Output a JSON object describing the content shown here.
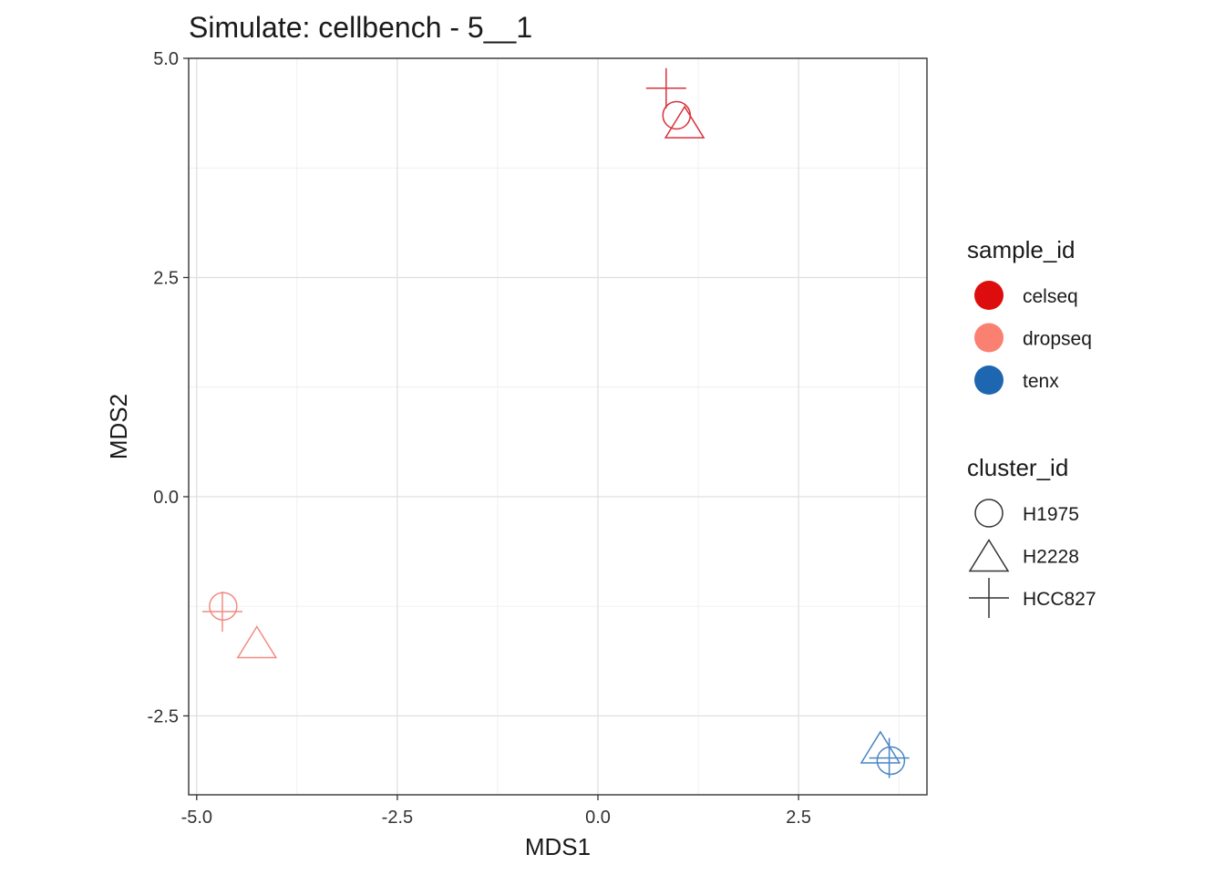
{
  "chart_data": {
    "type": "scatter",
    "title": "Simulate: cellbench - 5__1",
    "xlabel": "MDS1",
    "ylabel": "MDS2",
    "xlim": [
      -5.1,
      4.1
    ],
    "ylim": [
      -3.4,
      5.0
    ],
    "x_ticks": [
      -5.0,
      -2.5,
      0.0,
      2.5
    ],
    "x_tick_labels": [
      "-5.0",
      "-2.5",
      "0.0",
      "2.5"
    ],
    "y_ticks": [
      -2.5,
      0.0,
      2.5,
      5.0
    ],
    "y_tick_labels": [
      "-2.5",
      "0.0",
      "2.5",
      "5.0"
    ],
    "grid": true,
    "legend_position": "right",
    "color_legend": {
      "title": "sample_id",
      "entries": [
        {
          "label": "celseq",
          "color": "#de0d0d"
        },
        {
          "label": "dropseq",
          "color": "#fa8072"
        },
        {
          "label": "tenx",
          "color": "#1f66b0"
        }
      ]
    },
    "shape_legend": {
      "title": "cluster_id",
      "entries": [
        {
          "label": "H1975",
          "shape": "circle"
        },
        {
          "label": "H2228",
          "shape": "triangle"
        },
        {
          "label": "HCC827",
          "shape": "plus"
        }
      ]
    },
    "points": [
      {
        "sample_id": "celseq",
        "cluster_id": "H1975",
        "x": 0.98,
        "y": 4.35
      },
      {
        "sample_id": "celseq",
        "cluster_id": "H2228",
        "x": 1.08,
        "y": 4.24
      },
      {
        "sample_id": "celseq",
        "cluster_id": "HCC827",
        "x": 0.85,
        "y": 4.66
      },
      {
        "sample_id": "dropseq",
        "cluster_id": "H1975",
        "x": -4.67,
        "y": -1.25
      },
      {
        "sample_id": "dropseq",
        "cluster_id": "H2228",
        "x": -4.25,
        "y": -1.69
      },
      {
        "sample_id": "dropseq",
        "cluster_id": "HCC827",
        "x": -4.68,
        "y": -1.31
      },
      {
        "sample_id": "tenx",
        "cluster_id": "H1975",
        "x": 3.65,
        "y": -3.01
      },
      {
        "sample_id": "tenx",
        "cluster_id": "H2228",
        "x": 3.52,
        "y": -2.89
      },
      {
        "sample_id": "tenx",
        "cluster_id": "HCC827",
        "x": 3.63,
        "y": -2.98
      }
    ]
  }
}
